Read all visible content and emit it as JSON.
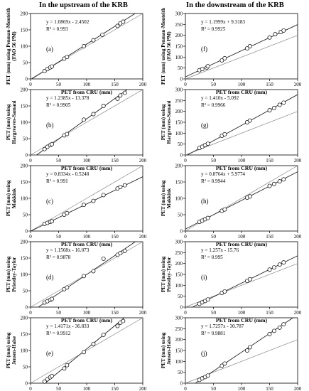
{
  "figure": {
    "columns": [
      "In the upstream of the KRB",
      "In the downstream of the KRB"
    ]
  },
  "chart_data": [
    {
      "type": "scatter",
      "panel_label": "(a)",
      "xlabel": "PET from CRU (mm)",
      "ylabel": "PET (mm) using Penman-Monteith (FAO 56 PM)",
      "xlim": [
        0,
        200
      ],
      "ylim": [
        0,
        200
      ],
      "x_ticks": [
        0,
        50,
        100,
        150,
        200
      ],
      "y_ticks": [
        0,
        50,
        100,
        150,
        200
      ],
      "equation": "y = 1.0869x - 2.4502",
      "r2": "R² = 0.993",
      "fit": {
        "slope": 1.0869,
        "intercept": -2.4502
      },
      "one_to_one": true,
      "points": [
        [
          25,
          24
        ],
        [
          30,
          30
        ],
        [
          35,
          35
        ],
        [
          38,
          38
        ],
        [
          60,
          62
        ],
        [
          65,
          67
        ],
        [
          95,
          100
        ],
        [
          112,
          118
        ],
        [
          128,
          135
        ],
        [
          155,
          162
        ],
        [
          160,
          170
        ],
        [
          165,
          175
        ]
      ]
    },
    {
      "type": "scatter",
      "panel_label": "(f)",
      "xlabel": "PET from CRU (mm)",
      "ylabel": "PET (mm) using Penman-Monteith (FAO 56 PM)",
      "xlim": [
        0,
        200
      ],
      "ylim": [
        0,
        300
      ],
      "x_ticks": [
        0,
        50,
        100,
        150,
        200
      ],
      "y_ticks": [
        0,
        50,
        100,
        150,
        200,
        250,
        300
      ],
      "equation": "y = 1.1999x + 9.3183",
      "r2": "R² = 0.9925",
      "fit": {
        "slope": 1.1999,
        "intercept": 9.3183
      },
      "one_to_one": true,
      "points": [
        [
          25,
          40
        ],
        [
          30,
          45
        ],
        [
          38,
          52
        ],
        [
          40,
          58
        ],
        [
          65,
          85
        ],
        [
          70,
          95
        ],
        [
          110,
          140
        ],
        [
          115,
          150
        ],
        [
          150,
          190
        ],
        [
          160,
          205
        ],
        [
          170,
          215
        ],
        [
          175,
          222
        ]
      ]
    },
    {
      "type": "scatter",
      "panel_label": "(b)",
      "xlabel": "PET from CRU (mm)",
      "ylabel": "PET (mm) using Hargreaves-Samani",
      "xlim": [
        0,
        200
      ],
      "ylim": [
        0,
        200
      ],
      "x_ticks": [
        0,
        50,
        100,
        150,
        200
      ],
      "y_ticks": [
        0,
        50,
        100,
        150,
        200
      ],
      "equation": "y = 1.2385x - 13.378",
      "r2": "R² = 0.9905",
      "fit": {
        "slope": 1.2385,
        "intercept": -13.378
      },
      "one_to_one": true,
      "points": [
        [
          25,
          18
        ],
        [
          30,
          25
        ],
        [
          35,
          30
        ],
        [
          38,
          33
        ],
        [
          60,
          60
        ],
        [
          65,
          64
        ],
        [
          95,
          108
        ],
        [
          112,
          125
        ],
        [
          130,
          150
        ],
        [
          155,
          172
        ],
        [
          160,
          182
        ],
        [
          168,
          190
        ]
      ]
    },
    {
      "type": "scatter",
      "panel_label": "(g)",
      "xlabel": "PET from CRU (mm)",
      "ylabel": "PET (mm) using Hargreaves-Samani",
      "xlim": [
        0,
        200
      ],
      "ylim": [
        0,
        300
      ],
      "x_ticks": [
        0,
        50,
        100,
        150,
        200
      ],
      "y_ticks": [
        0,
        50,
        100,
        150,
        200,
        250,
        300
      ],
      "equation": "y = 1.410x - 5.092",
      "r2": "R² = 0.9966",
      "fit": {
        "slope": 1.41,
        "intercept": -5.092
      },
      "one_to_one": true,
      "points": [
        [
          25,
          32
        ],
        [
          30,
          38
        ],
        [
          35,
          45
        ],
        [
          40,
          52
        ],
        [
          65,
          88
        ],
        [
          70,
          95
        ],
        [
          110,
          150
        ],
        [
          115,
          158
        ],
        [
          150,
          205
        ],
        [
          158,
          215
        ],
        [
          168,
          230
        ],
        [
          175,
          240
        ]
      ]
    },
    {
      "type": "scatter",
      "panel_label": "(c)",
      "xlabel": "PET from CRU (mm)",
      "ylabel": "PET (mm) using Makkink",
      "xlim": [
        0,
        200
      ],
      "ylim": [
        0,
        200
      ],
      "x_ticks": [
        0,
        50,
        100,
        150,
        200
      ],
      "y_ticks": [
        0,
        50,
        100,
        150,
        200
      ],
      "equation": "y = 0.8334x - 0.5248",
      "r2": "R² = 0.991",
      "fit": {
        "slope": 0.8334,
        "intercept": -0.5248
      },
      "one_to_one": true,
      "points": [
        [
          25,
          22
        ],
        [
          30,
          25
        ],
        [
          35,
          28
        ],
        [
          38,
          30
        ],
        [
          60,
          50
        ],
        [
          65,
          55
        ],
        [
          95,
          80
        ],
        [
          112,
          92
        ],
        [
          130,
          110
        ],
        [
          155,
          130
        ],
        [
          160,
          135
        ],
        [
          168,
          140
        ]
      ]
    },
    {
      "type": "scatter",
      "panel_label": "(h)",
      "xlabel": "PET from CRU (mm)",
      "ylabel": "PET (mm) using Makkink",
      "xlim": [
        0,
        200
      ],
      "ylim": [
        0,
        200
      ],
      "x_ticks": [
        0,
        50,
        100,
        150,
        200
      ],
      "y_ticks": [
        0,
        50,
        100,
        150,
        200
      ],
      "equation": "y = 0.8764x + 5.9774",
      "r2": "R² = 0.9944",
      "fit": {
        "slope": 0.8764,
        "intercept": 5.9774
      },
      "one_to_one": true,
      "points": [
        [
          25,
          28
        ],
        [
          30,
          32
        ],
        [
          35,
          36
        ],
        [
          40,
          40
        ],
        [
          65,
          62
        ],
        [
          70,
          66
        ],
        [
          110,
          102
        ],
        [
          115,
          106
        ],
        [
          150,
          138
        ],
        [
          158,
          144
        ],
        [
          168,
          152
        ],
        [
          175,
          158
        ]
      ]
    },
    {
      "type": "scatter",
      "panel_label": "(d)",
      "xlabel": "PET from CRU (mm)",
      "ylabel": "PET (mm) using Priestley-Taylor",
      "xlim": [
        0,
        200
      ],
      "ylim": [
        0,
        200
      ],
      "x_ticks": [
        0,
        50,
        100,
        150,
        200
      ],
      "y_ticks": [
        0,
        50,
        100,
        150,
        200
      ],
      "equation": "y = 1.1568x - 16.073",
      "r2": "R² = 0.9878",
      "fit": {
        "slope": 1.1568,
        "intercept": -16.073
      },
      "one_to_one": true,
      "points": [
        [
          25,
          14
        ],
        [
          30,
          18
        ],
        [
          35,
          22
        ],
        [
          38,
          25
        ],
        [
          60,
          55
        ],
        [
          65,
          60
        ],
        [
          95,
          95
        ],
        [
          112,
          110
        ],
        [
          130,
          148
        ],
        [
          155,
          160
        ],
        [
          160,
          165
        ],
        [
          168,
          172
        ]
      ]
    },
    {
      "type": "scatter",
      "panel_label": "(i)",
      "xlabel": "PET from CRU (mm)",
      "ylabel": "PET (mm) using Priestley-Taylor",
      "xlim": [
        0,
        200
      ],
      "ylim": [
        0,
        300
      ],
      "x_ticks": [
        0,
        50,
        100,
        150,
        200
      ],
      "y_ticks": [
        0,
        50,
        100,
        150,
        200,
        250,
        300
      ],
      "equation": "y = 1.257x - 15.76",
      "r2": "R² = 0.995",
      "fit": {
        "slope": 1.257,
        "intercept": -15.76
      },
      "one_to_one": true,
      "points": [
        [
          25,
          15
        ],
        [
          30,
          22
        ],
        [
          35,
          28
        ],
        [
          40,
          35
        ],
        [
          65,
          65
        ],
        [
          70,
          72
        ],
        [
          110,
          120
        ],
        [
          115,
          128
        ],
        [
          150,
          172
        ],
        [
          158,
          182
        ],
        [
          168,
          195
        ],
        [
          175,
          205
        ]
      ]
    },
    {
      "type": "scatter",
      "panel_label": "(e)",
      "xlabel": "PET from CRU (mm)",
      "ylabel": "PET (mm) using Jensen-Haise",
      "xlim": [
        0,
        200
      ],
      "ylim": [
        0,
        200
      ],
      "x_ticks": [
        0,
        50,
        100,
        150,
        200
      ],
      "y_ticks": [
        0,
        50,
        100,
        150,
        200
      ],
      "equation": "y = 1.4171x - 36.833",
      "r2": "R² = 0.9912",
      "fit": {
        "slope": 1.4171,
        "intercept": -36.833
      },
      "one_to_one": true,
      "points": [
        [
          25,
          5
        ],
        [
          30,
          12
        ],
        [
          35,
          18
        ],
        [
          38,
          22
        ],
        [
          60,
          45
        ],
        [
          65,
          55
        ],
        [
          95,
          95
        ],
        [
          112,
          120
        ],
        [
          130,
          148
        ],
        [
          155,
          175
        ],
        [
          160,
          185
        ],
        [
          165,
          190
        ]
      ]
    },
    {
      "type": "scatter",
      "panel_label": "(j)",
      "xlabel": "PET from CRU (mm)",
      "ylabel": "PET (mm) using Jensen-Haise",
      "xlim": [
        0,
        200
      ],
      "ylim": [
        0,
        300
      ],
      "x_ticks": [
        0,
        50,
        100,
        150,
        200
      ],
      "y_ticks": [
        0,
        50,
        100,
        150,
        200,
        250,
        300
      ],
      "equation": "y = 1.7257x - 30.787",
      "r2": "R² = 0.9881",
      "fit": {
        "slope": 1.7257,
        "intercept": -30.787
      },
      "one_to_one": true,
      "points": [
        [
          25,
          15
        ],
        [
          30,
          22
        ],
        [
          35,
          28
        ],
        [
          40,
          35
        ],
        [
          65,
          80
        ],
        [
          70,
          90
        ],
        [
          110,
          150
        ],
        [
          115,
          165
        ],
        [
          150,
          225
        ],
        [
          158,
          240
        ],
        [
          168,
          255
        ],
        [
          175,
          270
        ]
      ]
    }
  ]
}
